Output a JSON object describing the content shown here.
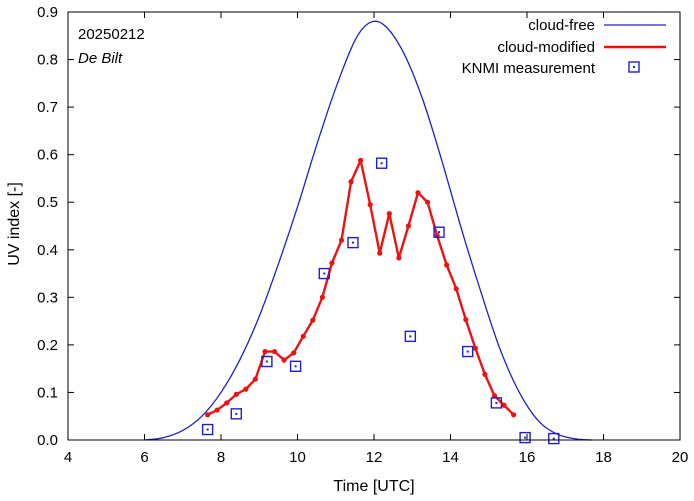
{
  "chart_data": {
    "type": "line",
    "title": "",
    "xlabel": "Time  [UTC]",
    "ylabel": "UV index  [-]",
    "xlim": [
      4,
      20
    ],
    "ylim": [
      0,
      0.9
    ],
    "x_ticks": [
      4,
      6,
      8,
      10,
      12,
      14,
      16,
      18,
      20
    ],
    "y_ticks": [
      0,
      0.1,
      0.2,
      0.3,
      0.4,
      0.5,
      0.6,
      0.7,
      0.8,
      0.9
    ],
    "x_tick_labels": [
      "4",
      "6",
      "8",
      "10",
      "12",
      "14",
      "16",
      "18",
      "20"
    ],
    "y_tick_labels": [
      "0.0",
      "0.1",
      "0.2",
      "0.3",
      "0.4",
      "0.5",
      "0.6",
      "0.7",
      "0.8",
      "0.9"
    ],
    "annotations": {
      "date": "20250212",
      "location": "De Bilt"
    },
    "legend_position": "top-right",
    "series": [
      {
        "name": "cloud-free",
        "style": "line",
        "color": "#1f1fd0",
        "x": [
          6.0,
          6.5,
          7.0,
          7.5,
          8.0,
          8.5,
          9.0,
          9.5,
          10.0,
          10.5,
          11.0,
          11.5,
          11.9,
          12.3,
          12.8,
          13.3,
          13.8,
          14.3,
          14.8,
          15.3,
          15.8,
          16.3,
          16.8,
          17.3,
          17.7
        ],
        "y": [
          0.0,
          0.005,
          0.02,
          0.05,
          0.1,
          0.17,
          0.26,
          0.37,
          0.49,
          0.62,
          0.74,
          0.84,
          0.878,
          0.87,
          0.81,
          0.71,
          0.58,
          0.44,
          0.31,
          0.19,
          0.1,
          0.04,
          0.012,
          0.002,
          0.0
        ]
      },
      {
        "name": "cloud-modified",
        "style": "line-markers",
        "color": "#ee1111",
        "x": [
          7.65,
          7.9,
          8.15,
          8.4,
          8.65,
          8.9,
          9.15,
          9.4,
          9.65,
          9.9,
          10.15,
          10.4,
          10.65,
          10.9,
          11.15,
          11.4,
          11.65,
          11.9,
          12.15,
          12.4,
          12.65,
          12.9,
          13.15,
          13.4,
          13.65,
          13.9,
          14.15,
          14.4,
          14.65,
          14.9,
          15.15,
          15.4,
          15.65
        ],
        "y": [
          0.053,
          0.063,
          0.078,
          0.096,
          0.107,
          0.128,
          0.186,
          0.186,
          0.168,
          0.183,
          0.218,
          0.252,
          0.3,
          0.372,
          0.42,
          0.543,
          0.588,
          0.495,
          0.393,
          0.476,
          0.383,
          0.45,
          0.52,
          0.5,
          0.43,
          0.368,
          0.318,
          0.253,
          0.193,
          0.138,
          0.093,
          0.073,
          0.053
        ]
      },
      {
        "name": "KNMI measurement",
        "style": "markers",
        "color": "#1f1fd0",
        "x": [
          7.65,
          8.4,
          9.2,
          9.95,
          10.7,
          11.45,
          12.2,
          12.95,
          13.7,
          14.45,
          15.2,
          15.95,
          16.7
        ],
        "y": [
          0.022,
          0.055,
          0.165,
          0.155,
          0.35,
          0.415,
          0.582,
          0.218,
          0.437,
          0.186,
          0.078,
          0.005,
          0.003
        ]
      }
    ]
  }
}
